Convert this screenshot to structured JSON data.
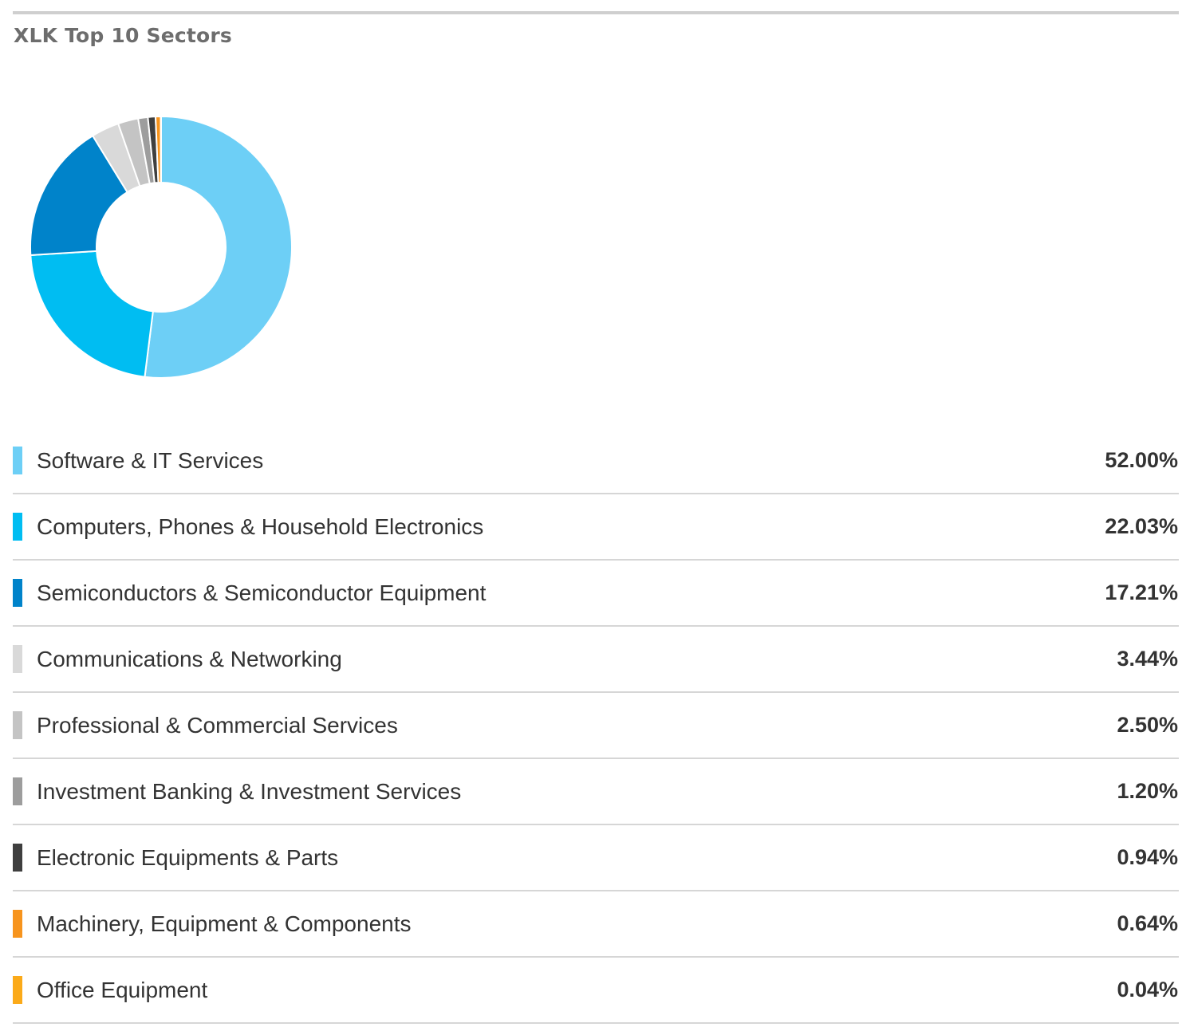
{
  "chart_data": {
    "type": "pie",
    "variant": "donut",
    "title": "XLK Top 10 Sectors",
    "unit": "%",
    "legend_position": "bottom",
    "categories": [
      "Software & IT Services",
      "Computers, Phones & Household Electronics",
      "Semiconductors & Semiconductor Equipment",
      "Communications & Networking",
      "Professional & Commercial Services",
      "Investment Banking & Investment Services",
      "Electronic Equipments & Parts",
      "Machinery, Equipment & Components",
      "Office Equipment"
    ],
    "values": [
      52.0,
      22.03,
      17.21,
      3.44,
      2.5,
      1.2,
      0.94,
      0.64,
      0.04
    ],
    "value_labels": [
      "52.00%",
      "22.03%",
      "17.21%",
      "3.44%",
      "2.50%",
      "1.20%",
      "0.94%",
      "0.64%",
      "0.04%"
    ],
    "colors": [
      "#6dcff6",
      "#00bdf2",
      "#0083ca",
      "#d9d9d9",
      "#c4c4c4",
      "#9d9d9d",
      "#3f3f3f",
      "#f7941d",
      "#fbaa19"
    ]
  }
}
